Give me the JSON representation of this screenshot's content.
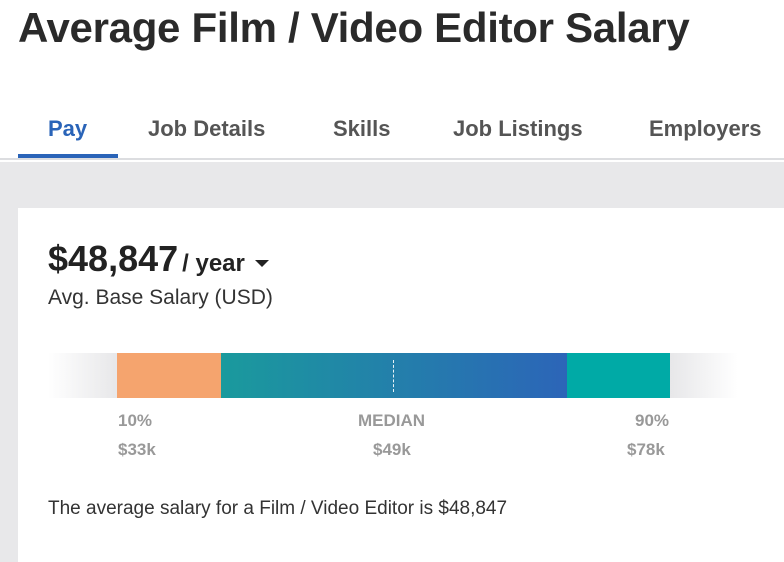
{
  "page": {
    "title": "Average Film / Video Editor Salary"
  },
  "tabs": [
    {
      "label": "Pay",
      "active": true
    },
    {
      "label": "Job Details",
      "active": false
    },
    {
      "label": "Skills",
      "active": false
    },
    {
      "label": "Job Listings",
      "active": false
    },
    {
      "label": "Employers",
      "active": false
    }
  ],
  "salary": {
    "amount": "$48,847",
    "period": "/ year",
    "subtitle": "Avg. Base Salary (USD)"
  },
  "range": {
    "low": {
      "label": "10%",
      "value": "$33k"
    },
    "median": {
      "label": "MEDIAN",
      "value": "$49k"
    },
    "high": {
      "label": "90%",
      "value": "$78k"
    }
  },
  "summary": "The average salary for a Film / Video Editor is $48,847",
  "colors": {
    "accent": "#2a64b8",
    "low_segment": "#f5a46e",
    "mid_segment_start": "#1a9a9d",
    "mid_segment_end": "#2c65b8",
    "high_segment": "#00aaa6"
  }
}
